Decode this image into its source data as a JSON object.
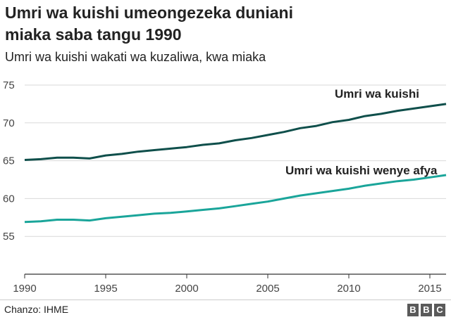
{
  "header": {
    "title_line1": "Umri wa kuishi umeongezeka duniani",
    "title_line2": "miaka saba tangu 1990",
    "subtitle": "Umri wa kuishi wakati wa kuzaliwa, kwa miaka"
  },
  "footer": {
    "source": "Chanzo: IHME",
    "logo_letters": [
      "B",
      "B",
      "C"
    ]
  },
  "colors": {
    "life_expectancy": "#0f4f4b",
    "healthy_life_expectancy": "#1aa59a",
    "grid": "#d9d9d9",
    "text": "#222222"
  },
  "chart_data": {
    "type": "line",
    "title": "Umri wa kuishi umeongezeka duniani miaka saba tangu 1990",
    "subtitle": "Umri wa kuishi wakati wa kuzaliwa, kwa miaka",
    "xlabel": "",
    "ylabel": "",
    "xlim": [
      1990,
      2016
    ],
    "ylim": [
      50,
      75
    ],
    "xticks": [
      1990,
      1995,
      2000,
      2005,
      2010,
      2015
    ],
    "yticks": [
      55,
      60,
      65,
      70,
      75
    ],
    "grid": true,
    "x": [
      1990,
      1991,
      1992,
      1993,
      1994,
      1995,
      1996,
      1997,
      1998,
      1999,
      2000,
      2001,
      2002,
      2003,
      2004,
      2005,
      2006,
      2007,
      2008,
      2009,
      2010,
      2011,
      2012,
      2013,
      2014,
      2015,
      2016
    ],
    "series": [
      {
        "name": "Umri wa kuishi",
        "values": [
          65.1,
          65.2,
          65.4,
          65.4,
          65.3,
          65.7,
          65.9,
          66.2,
          66.4,
          66.6,
          66.8,
          67.1,
          67.3,
          67.7,
          68.0,
          68.4,
          68.8,
          69.3,
          69.6,
          70.1,
          70.4,
          70.9,
          71.2,
          71.6,
          71.9,
          72.2,
          72.5
        ]
      },
      {
        "name": "Umri wa kuishi wenye afya",
        "values": [
          56.9,
          57.0,
          57.2,
          57.2,
          57.1,
          57.4,
          57.6,
          57.8,
          58.0,
          58.1,
          58.3,
          58.5,
          58.7,
          59.0,
          59.3,
          59.6,
          60.0,
          60.4,
          60.7,
          61.0,
          61.3,
          61.7,
          62.0,
          62.3,
          62.5,
          62.8,
          63.1
        ]
      }
    ]
  }
}
